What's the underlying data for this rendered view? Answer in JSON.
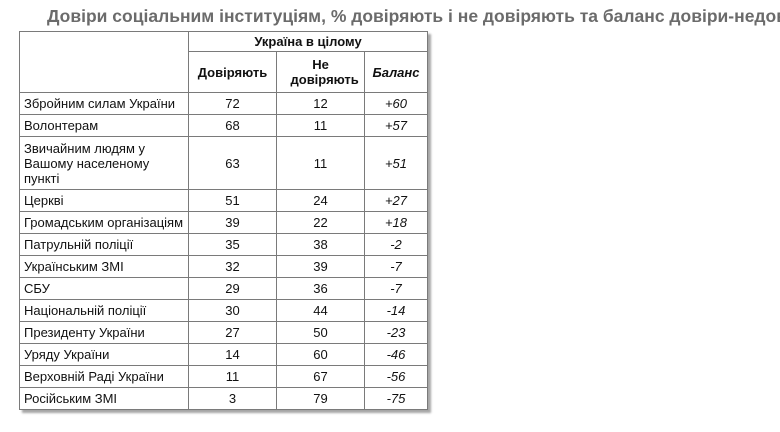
{
  "title": "Довіри соціальним інституціям, % довіряють і не довіряють та баланс довіри-недовіри",
  "table": {
    "group_header": "Україна в цілому",
    "columns": [
      "Довіряють",
      "Не довіряють",
      "Баланс"
    ],
    "rows": [
      {
        "name": "Збройним силам України",
        "trust": "72",
        "distrust": "12",
        "balance": "+60"
      },
      {
        "name": "Волонтерам",
        "trust": "68",
        "distrust": "11",
        "balance": "+57"
      },
      {
        "name": "Звичайним людям у Вашому населеному пункті",
        "trust": "63",
        "distrust": "11",
        "balance": "+51"
      },
      {
        "name": "Церкві",
        "trust": "51",
        "distrust": "24",
        "balance": "+27"
      },
      {
        "name": "Громадським організаціям",
        "trust": "39",
        "distrust": "22",
        "balance": "+18"
      },
      {
        "name": "Патрульній поліції",
        "trust": "35",
        "distrust": "38",
        "balance": "-2"
      },
      {
        "name": "Українським ЗМІ",
        "trust": "32",
        "distrust": "39",
        "balance": "-7"
      },
      {
        "name": "СБУ",
        "trust": "29",
        "distrust": "36",
        "balance": "-7"
      },
      {
        "name": "Національній поліції",
        "trust": "30",
        "distrust": "44",
        "balance": "-14"
      },
      {
        "name": "Президенту України",
        "trust": "27",
        "distrust": "50",
        "balance": "-23"
      },
      {
        "name": "Уряду України",
        "trust": "14",
        "distrust": "60",
        "balance": "-46"
      },
      {
        "name": "Верховній Раді України",
        "trust": "11",
        "distrust": "67",
        "balance": "-56"
      },
      {
        "name": "Російським ЗМІ",
        "trust": "3",
        "distrust": "79",
        "balance": "-75"
      }
    ]
  }
}
